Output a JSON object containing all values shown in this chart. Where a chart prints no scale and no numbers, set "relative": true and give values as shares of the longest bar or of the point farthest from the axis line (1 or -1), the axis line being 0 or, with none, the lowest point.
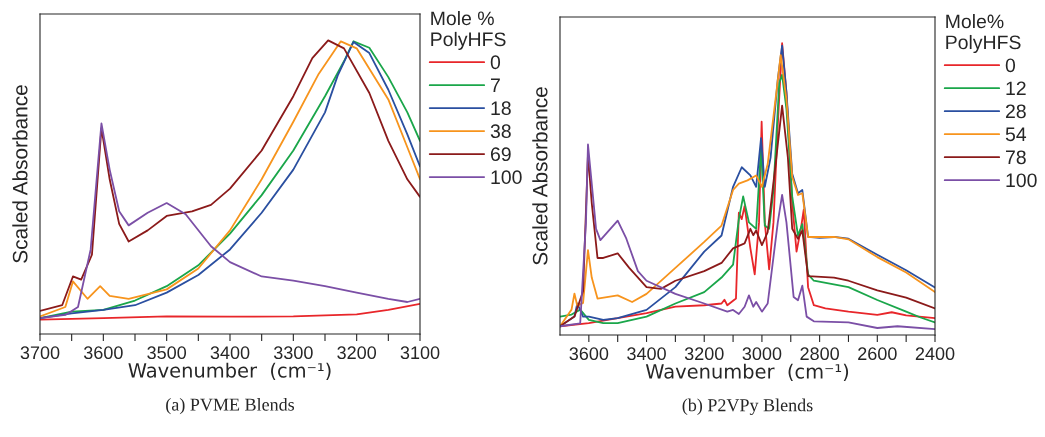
{
  "chart_data": [
    {
      "type": "line",
      "relative": true,
      "xlabel": "Wavenumber  (cm⁻¹)",
      "ylabel": "Scaled Absorbance",
      "legend_title": "Mole %\nPolyHFS",
      "legend": "right",
      "annotations": [
        "(a) PVME Blends"
      ],
      "xlim": [
        3700,
        3100
      ],
      "xticks": [
        3700,
        {
          "value": 3650,
          "label": null
        },
        3600,
        {
          "value": 3550,
          "label": null
        },
        3500,
        {
          "value": 3450,
          "label": null
        },
        3400,
        {
          "value": 3350,
          "label": null
        },
        3300,
        {
          "value": 3250,
          "label": null
        },
        3200,
        {
          "value": 3150,
          "label": null
        },
        3100
      ],
      "series": [
        {
          "name": "0",
          "color": "#e8262a",
          "x": [
            3700,
            3600,
            3500,
            3400,
            3300,
            3200,
            3150,
            3100
          ],
          "values": [
            0.049,
            0.054,
            0.06,
            0.059,
            0.06,
            0.067,
            0.082,
            0.103
          ]
        },
        {
          "name": "7",
          "color": "#1aa64a",
          "x": [
            3700,
            3650,
            3600,
            3550,
            3500,
            3450,
            3400,
            3350,
            3300,
            3250,
            3220,
            3205,
            3180,
            3150,
            3120,
            3100
          ],
          "values": [
            0.054,
            0.076,
            0.082,
            0.114,
            0.163,
            0.234,
            0.342,
            0.473,
            0.625,
            0.81,
            0.929,
            0.997,
            0.975,
            0.875,
            0.755,
            0.658
          ]
        },
        {
          "name": "18",
          "color": "#2a4fa0",
          "x": [
            3700,
            3650,
            3600,
            3550,
            3500,
            3450,
            3400,
            3350,
            3300,
            3250,
            3230,
            3205,
            3180,
            3150,
            3120,
            3100
          ],
          "values": [
            0.054,
            0.07,
            0.082,
            0.098,
            0.141,
            0.201,
            0.288,
            0.413,
            0.56,
            0.755,
            0.88,
            0.995,
            0.957,
            0.832,
            0.68,
            0.571
          ]
        },
        {
          "name": "38",
          "color": "#f7941d",
          "x": [
            3700,
            3660,
            3648,
            3625,
            3605,
            3590,
            3560,
            3500,
            3450,
            3400,
            3350,
            3300,
            3260,
            3225,
            3200,
            3150,
            3120,
            3100
          ],
          "values": [
            0.06,
            0.092,
            0.179,
            0.12,
            0.163,
            0.13,
            0.12,
            0.152,
            0.223,
            0.353,
            0.527,
            0.723,
            0.886,
            0.997,
            0.973,
            0.799,
            0.636,
            0.527
          ]
        },
        {
          "name": "69",
          "color": "#8b1a1a",
          "x": [
            3700,
            3665,
            3648,
            3635,
            3618,
            3603,
            3590,
            3575,
            3560,
            3530,
            3500,
            3460,
            3430,
            3400,
            3350,
            3300,
            3270,
            3245,
            3220,
            3180,
            3150,
            3120,
            3100
          ],
          "values": [
            0.079,
            0.098,
            0.196,
            0.185,
            0.27,
            0.701,
            0.527,
            0.375,
            0.315,
            0.353,
            0.402,
            0.418,
            0.44,
            0.495,
            0.625,
            0.81,
            0.94,
            1.0,
            0.973,
            0.821,
            0.658,
            0.527,
            0.467
          ]
        },
        {
          "name": "100",
          "color": "#7b4fa6",
          "x": [
            3700,
            3660,
            3640,
            3620,
            3603,
            3590,
            3575,
            3560,
            3530,
            3500,
            3470,
            3430,
            3400,
            3350,
            3300,
            3250,
            3200,
            3150,
            3120,
            3100
          ],
          "values": [
            0.054,
            0.065,
            0.092,
            0.288,
            0.717,
            0.56,
            0.418,
            0.37,
            0.413,
            0.446,
            0.408,
            0.299,
            0.245,
            0.196,
            0.182,
            0.163,
            0.141,
            0.12,
            0.109,
            0.12
          ]
        }
      ]
    },
    {
      "type": "line",
      "relative": true,
      "xlabel": "Wavenumber  (cm⁻¹)",
      "ylabel": "Scaled Absorbance",
      "legend_title": "Mole%\nPolyHFS",
      "legend": "right",
      "annotations": [
        "(b) P2VPy Blends"
      ],
      "xlim": [
        3700,
        2400
      ],
      "xticks": [
        3600,
        {
          "value": 3500,
          "label": null
        },
        3400,
        {
          "value": 3300,
          "label": null
        },
        3200,
        {
          "value": 3100,
          "label": null
        },
        3000,
        {
          "value": 2900,
          "label": null
        },
        2800,
        {
          "value": 2700,
          "label": null
        },
        2600,
        {
          "value": 2500,
          "label": null
        },
        2400
      ],
      "series": [
        {
          "name": "0",
          "color": "#e8262a",
          "x": [
            3700,
            3600,
            3500,
            3400,
            3300,
            3200,
            3140,
            3130,
            3120,
            3090,
            3080,
            3070,
            3060,
            3040,
            3025,
            3010,
            3001,
            2990,
            2975,
            2960,
            2945,
            2930,
            2915,
            2895,
            2880,
            2865,
            2855,
            2840,
            2820,
            2780,
            2700,
            2600,
            2550,
            2500,
            2400
          ],
          "values": [
            0.03,
            0.041,
            0.058,
            0.075,
            0.097,
            0.102,
            0.108,
            0.121,
            0.102,
            0.125,
            0.419,
            0.397,
            0.442,
            0.297,
            0.208,
            0.386,
            0.731,
            0.386,
            0.225,
            0.386,
            0.72,
            1.0,
            0.831,
            0.453,
            0.286,
            0.364,
            0.43,
            0.164,
            0.102,
            0.091,
            0.08,
            0.069,
            0.078,
            0.067,
            0.058
          ]
        },
        {
          "name": "12",
          "color": "#1aa64a",
          "x": [
            3700,
            3660,
            3630,
            3600,
            3550,
            3500,
            3400,
            3300,
            3200,
            3140,
            3100,
            3080,
            3065,
            3045,
            3020,
            3003,
            2990,
            2975,
            2960,
            2940,
            2930,
            2915,
            2895,
            2875,
            2860,
            2840,
            2820,
            2700,
            2600,
            2500,
            2450,
            2400
          ],
          "values": [
            0.063,
            0.07,
            0.087,
            0.052,
            0.041,
            0.041,
            0.063,
            0.108,
            0.147,
            0.197,
            0.241,
            0.397,
            0.475,
            0.386,
            0.364,
            0.642,
            0.375,
            0.364,
            0.497,
            0.864,
            0.892,
            0.775,
            0.475,
            0.341,
            0.38,
            0.208,
            0.186,
            0.164,
            0.12,
            0.08,
            0.06,
            0.043
          ]
        },
        {
          "name": "28",
          "color": "#2a4fa0",
          "x": [
            3700,
            3650,
            3640,
            3620,
            3600,
            3550,
            3500,
            3400,
            3300,
            3200,
            3140,
            3100,
            3070,
            3040,
            3020,
            3003,
            2990,
            2970,
            2945,
            2930,
            2915,
            2895,
            2875,
            2860,
            2840,
            2800,
            2750,
            2700,
            2600,
            2500,
            2400
          ],
          "values": [
            0.03,
            0.063,
            0.108,
            0.063,
            0.063,
            0.052,
            0.058,
            0.086,
            0.164,
            0.286,
            0.341,
            0.508,
            0.575,
            0.547,
            0.508,
            0.675,
            0.508,
            0.608,
            0.876,
            0.992,
            0.831,
            0.553,
            0.486,
            0.497,
            0.336,
            0.333,
            0.336,
            0.33,
            0.275,
            0.222,
            0.163
          ]
        },
        {
          "name": "54",
          "color": "#f7941d",
          "x": [
            3700,
            3660,
            3650,
            3640,
            3620,
            3603,
            3590,
            3570,
            3500,
            3450,
            3400,
            3300,
            3200,
            3140,
            3100,
            3080,
            3050,
            3020,
            3000,
            2980,
            2950,
            2935,
            2915,
            2895,
            2875,
            2860,
            2840,
            2750,
            2700,
            2600,
            2500,
            2400
          ],
          "values": [
            0.03,
            0.087,
            0.142,
            0.1,
            0.11,
            0.291,
            0.197,
            0.125,
            0.136,
            0.113,
            0.141,
            0.23,
            0.319,
            0.375,
            0.497,
            0.519,
            0.53,
            0.547,
            0.508,
            0.586,
            0.831,
            0.959,
            0.808,
            0.542,
            0.48,
            0.486,
            0.336,
            0.336,
            0.328,
            0.267,
            0.214,
            0.147
          ]
        },
        {
          "name": "78",
          "color": "#8b1a1a",
          "x": [
            3700,
            3650,
            3620,
            3603,
            3590,
            3570,
            3550,
            3500,
            3460,
            3400,
            3350,
            3300,
            3200,
            3140,
            3100,
            3060,
            3040,
            3030,
            3020,
            3000,
            2980,
            2950,
            2930,
            2910,
            2895,
            2875,
            2860,
            2840,
            2750,
            2700,
            2600,
            2500,
            2400
          ],
          "values": [
            0.03,
            0.063,
            0.15,
            0.62,
            0.453,
            0.264,
            0.264,
            0.28,
            0.23,
            0.164,
            0.158,
            0.186,
            0.219,
            0.247,
            0.297,
            0.314,
            0.364,
            0.342,
            0.358,
            0.308,
            0.353,
            0.608,
            0.786,
            0.608,
            0.364,
            0.33,
            0.358,
            0.202,
            0.197,
            0.186,
            0.153,
            0.128,
            0.091
          ]
        },
        {
          "name": "100",
          "color": "#7b4fa6",
          "x": [
            3700,
            3630,
            3610,
            3603,
            3590,
            3575,
            3560,
            3500,
            3470,
            3430,
            3400,
            3300,
            3200,
            3120,
            3100,
            3080,
            3060,
            3045,
            3030,
            3020,
            3000,
            2980,
            2945,
            2930,
            2915,
            2890,
            2875,
            2860,
            2845,
            2820,
            2700,
            2600,
            2530,
            2400
          ],
          "values": [
            0.03,
            0.04,
            0.386,
            0.653,
            0.519,
            0.364,
            0.325,
            0.392,
            0.33,
            0.219,
            0.186,
            0.141,
            0.108,
            0.08,
            0.086,
            0.072,
            0.097,
            0.136,
            0.097,
            0.113,
            0.08,
            0.108,
            0.386,
            0.48,
            0.386,
            0.13,
            0.119,
            0.169,
            0.063,
            0.047,
            0.043,
            0.024,
            0.03,
            0.02
          ]
        }
      ]
    }
  ]
}
